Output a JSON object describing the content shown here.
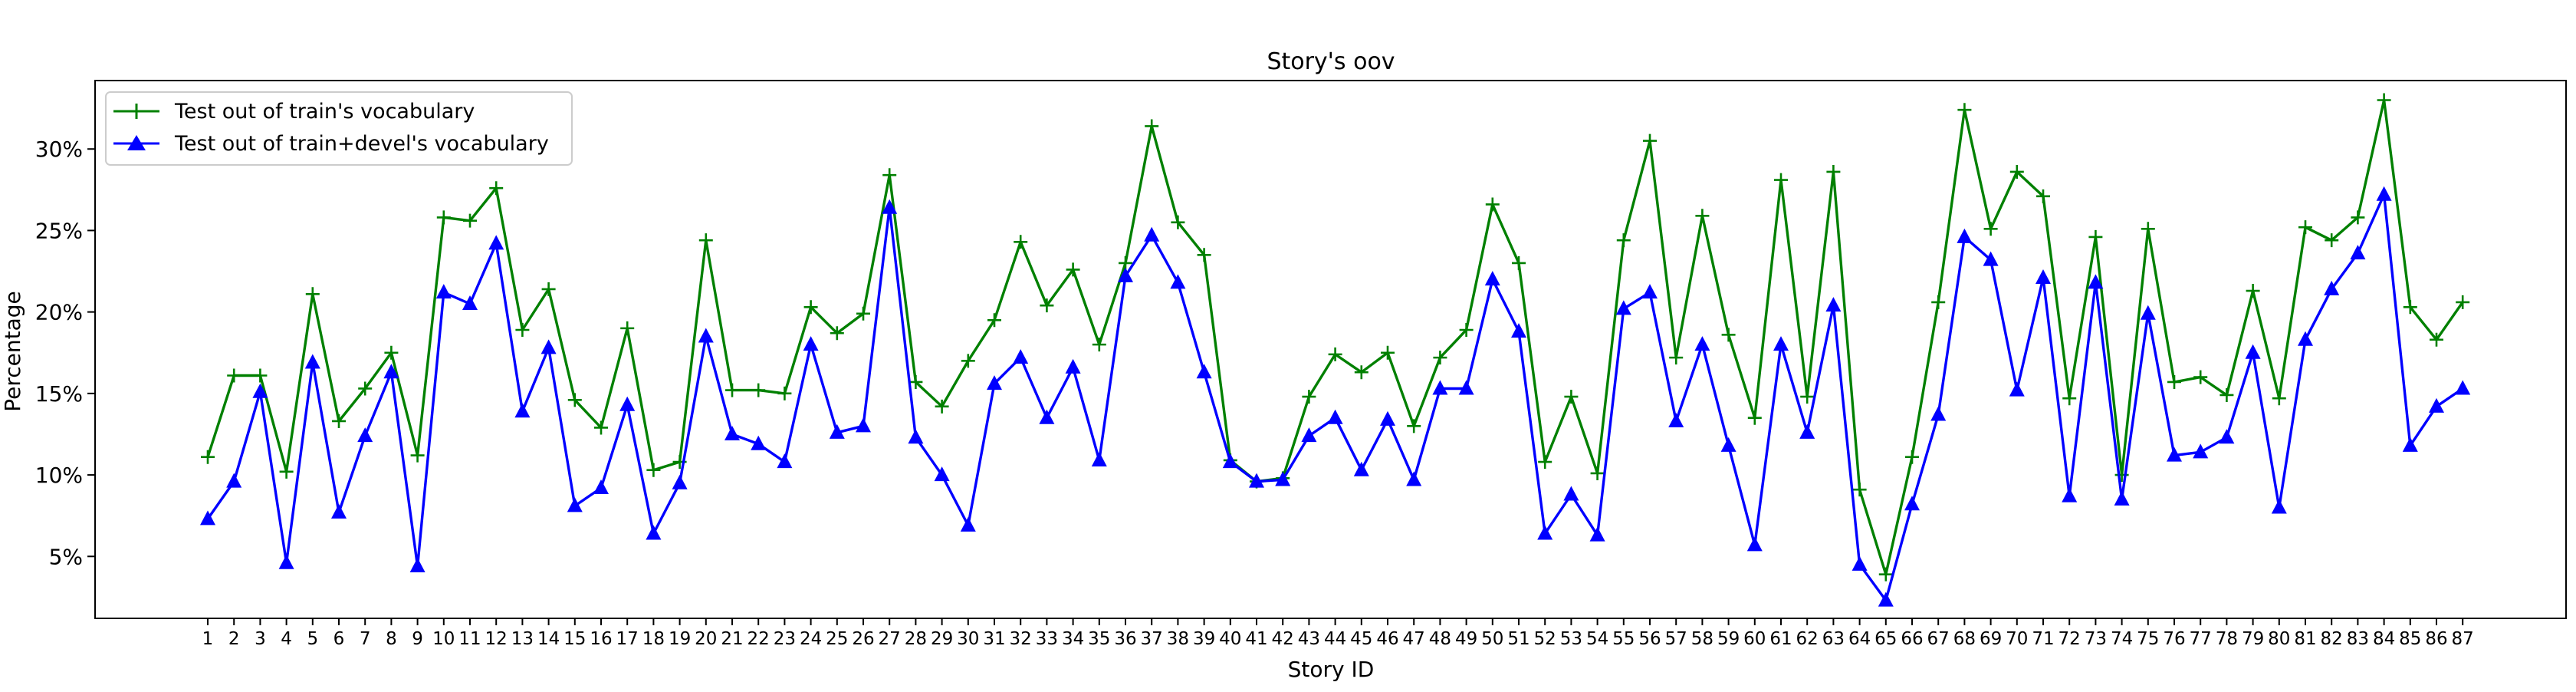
{
  "chart_data": {
    "type": "line",
    "title": "Story's oov",
    "xlabel": "Story ID",
    "ylabel": "Percentage",
    "ylim": [
      1.2,
      34.2
    ],
    "yticks": [
      5,
      10,
      15,
      20,
      25,
      30
    ],
    "ytick_labels": [
      "5%",
      "10%",
      "15%",
      "20%",
      "25%",
      "30%"
    ],
    "legend_position": "upper-left",
    "grid": false,
    "categories": [
      "1",
      "2",
      "3",
      "4",
      "5",
      "6",
      "7",
      "8",
      "9",
      "10",
      "11",
      "12",
      "13",
      "14",
      "15",
      "16",
      "17",
      "18",
      "19",
      "20",
      "21",
      "22",
      "23",
      "24",
      "25",
      "26",
      "27",
      "28",
      "29",
      "30",
      "31",
      "32",
      "33",
      "34",
      "35",
      "36",
      "37",
      "38",
      "39",
      "40",
      "41",
      "42",
      "43",
      "44",
      "45",
      "46",
      "47",
      "48",
      "49",
      "50",
      "51",
      "52",
      "53",
      "54",
      "55",
      "56",
      "57",
      "58",
      "59",
      "60",
      "61",
      "62",
      "63",
      "64",
      "65",
      "66",
      "67",
      "68",
      "69",
      "70",
      "71",
      "72",
      "73",
      "74",
      "75",
      "76",
      "77",
      "78",
      "79",
      "80",
      "81",
      "82",
      "83",
      "84",
      "85",
      "86",
      "87"
    ],
    "series": [
      {
        "name": "Test out of train's vocabulary",
        "color": "#008000",
        "marker": "plus",
        "values": [
          11.1,
          16.1,
          16.1,
          10.2,
          21.1,
          13.3,
          15.3,
          17.5,
          11.2,
          25.8,
          25.6,
          27.6,
          18.9,
          21.4,
          14.6,
          12.9,
          19.0,
          10.3,
          10.8,
          24.4,
          15.2,
          15.2,
          15.0,
          20.3,
          18.7,
          19.9,
          28.4,
          15.7,
          14.2,
          17.0,
          19.5,
          24.3,
          20.4,
          22.6,
          18.0,
          23.0,
          31.4,
          25.5,
          23.5,
          10.9,
          9.6,
          9.8,
          14.8,
          17.4,
          16.3,
          17.5,
          13.0,
          17.2,
          18.9,
          26.6,
          23.0,
          10.8,
          14.8,
          10.1,
          24.4,
          30.5,
          17.2,
          25.9,
          18.6,
          13.5,
          28.1,
          14.8,
          28.6,
          9.1,
          3.9,
          11.1,
          20.6,
          32.4,
          25.1,
          28.6,
          27.1,
          14.7,
          24.6,
          10.0,
          25.1,
          15.7,
          16.0,
          14.9,
          21.3,
          14.7,
          25.2,
          24.4,
          25.8,
          33.0,
          20.3,
          18.3,
          20.6
        ]
      },
      {
        "name": "Test out of train+devel's vocabulary",
        "color": "#0000ff",
        "marker": "triangle",
        "values": [
          7.3,
          9.6,
          15.1,
          4.6,
          16.9,
          7.7,
          12.4,
          16.3,
          4.4,
          21.2,
          20.5,
          24.2,
          13.9,
          17.8,
          8.1,
          9.2,
          14.3,
          6.4,
          9.5,
          18.5,
          12.5,
          11.9,
          10.8,
          18.0,
          12.6,
          13.0,
          26.4,
          12.3,
          10.0,
          6.9,
          15.6,
          17.2,
          13.5,
          16.6,
          10.9,
          22.2,
          24.7,
          21.8,
          16.3,
          10.8,
          9.6,
          9.7,
          12.4,
          13.5,
          10.3,
          13.4,
          9.7,
          15.3,
          15.3,
          22.0,
          18.8,
          6.4,
          8.8,
          6.3,
          20.2,
          21.2,
          13.3,
          18.0,
          11.8,
          5.7,
          18.0,
          12.6,
          20.4,
          4.5,
          2.3,
          8.2,
          13.7,
          24.6,
          23.2,
          15.2,
          22.1,
          8.7,
          21.8,
          8.5,
          19.9,
          11.2,
          11.4,
          12.3,
          17.5,
          8.0,
          18.3,
          21.4,
          23.6,
          27.2,
          11.8,
          14.2,
          15.3
        ]
      }
    ]
  }
}
